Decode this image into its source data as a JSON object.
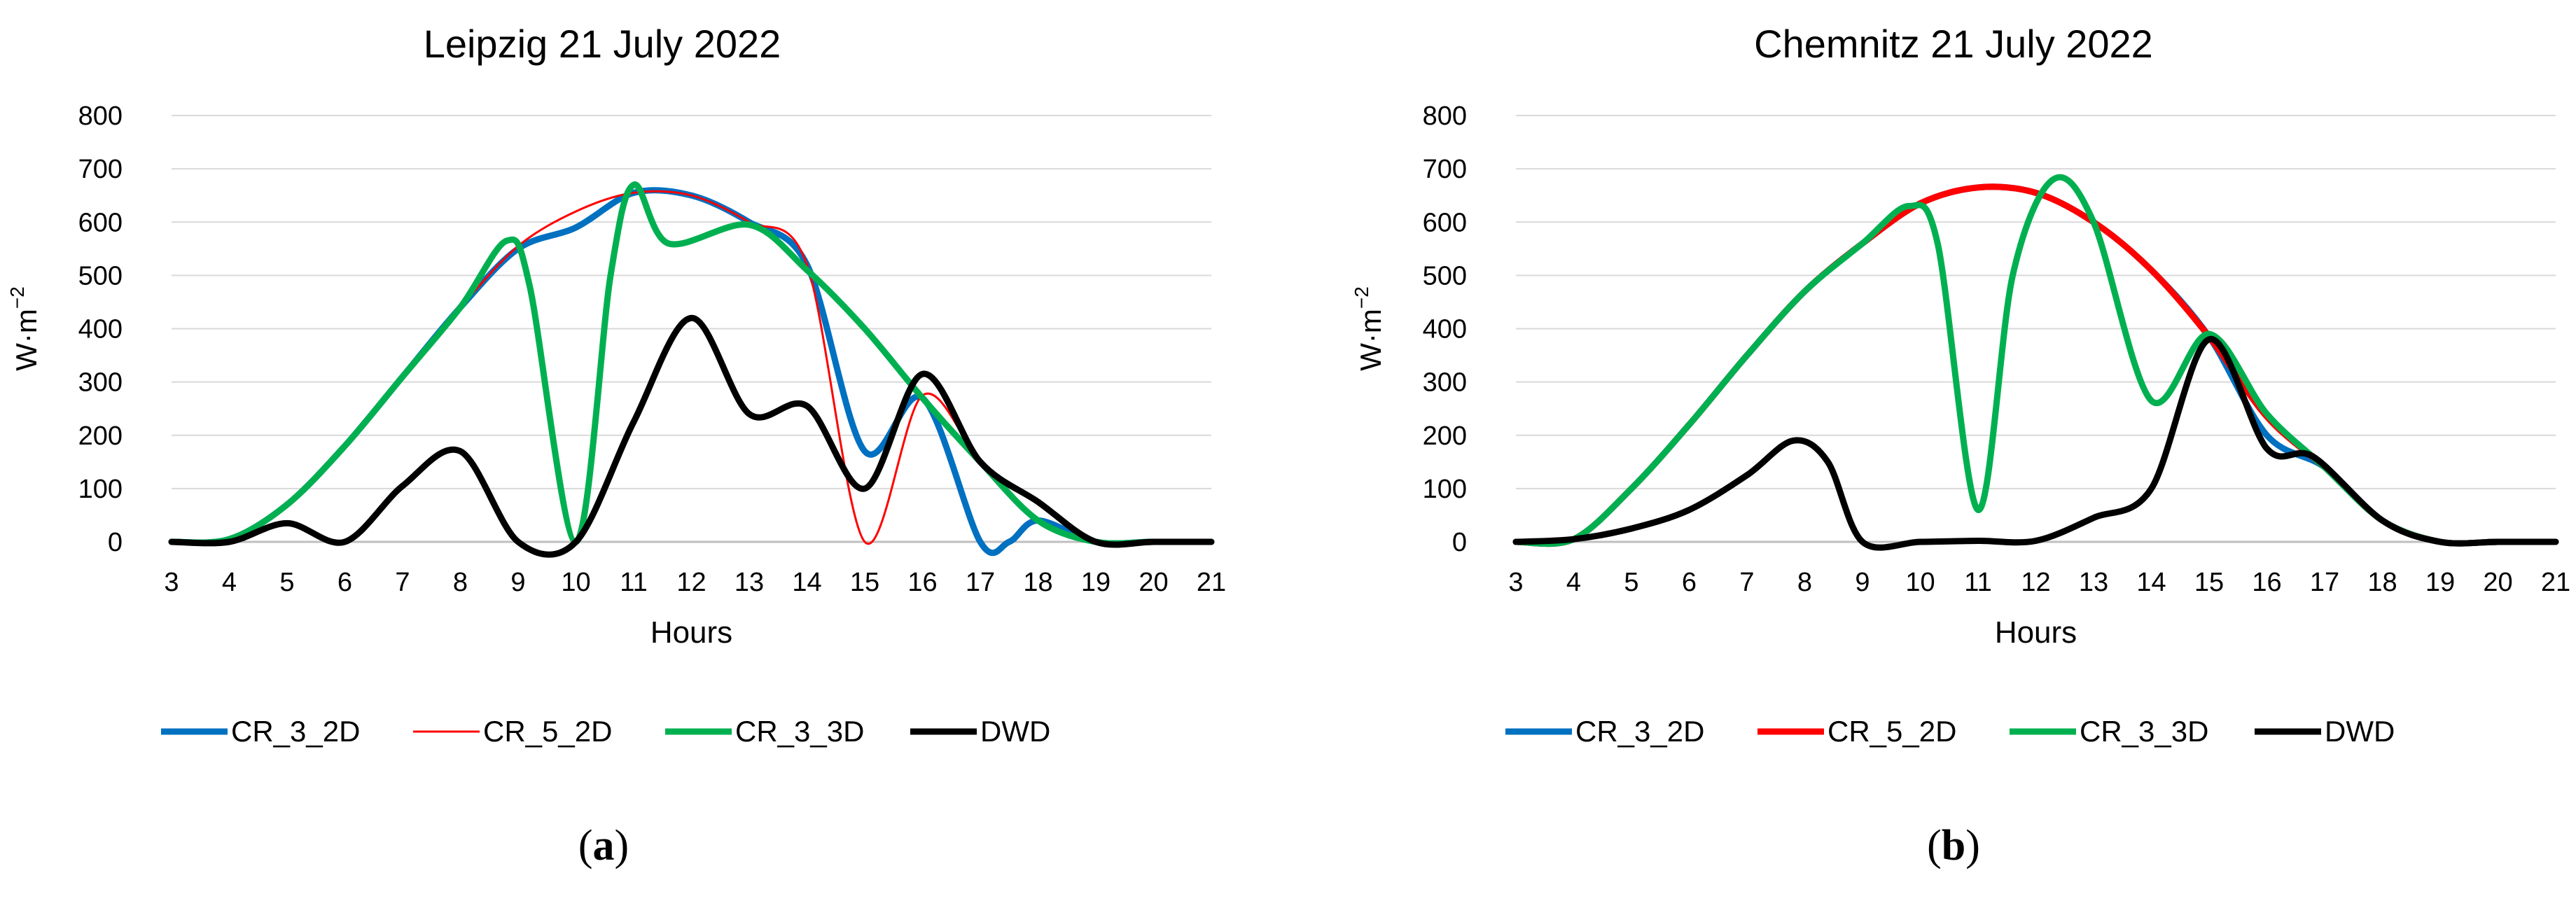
{
  "chart_data": [
    {
      "type": "line",
      "title": "Leipzig 21 July 2022",
      "xlabel": "Hours",
      "ylabel_base": "W·m",
      "ylabel_exp": "−2",
      "ylim": [
        0,
        800
      ],
      "yticks": [
        0,
        100,
        200,
        300,
        400,
        500,
        600,
        700,
        800
      ],
      "xlim": [
        3,
        21
      ],
      "xticks": [
        3,
        4,
        5,
        6,
        7,
        8,
        9,
        10,
        11,
        12,
        13,
        14,
        15,
        16,
        17,
        18,
        19,
        20,
        21
      ],
      "grid": true,
      "legend_position": "bottom",
      "caption_letter": "a",
      "series": [
        {
          "name": "CR_3_2D",
          "color": "#0070C0",
          "width": 9,
          "points": [
            [
              3,
              0
            ],
            [
              4,
              5
            ],
            [
              5,
              70
            ],
            [
              6,
              180
            ],
            [
              7,
              310
            ],
            [
              8,
              440
            ],
            [
              9,
              550
            ],
            [
              10,
              590
            ],
            [
              11,
              655
            ],
            [
              12,
              650
            ],
            [
              13,
              600
            ],
            [
              14,
              520
            ],
            [
              15,
              170
            ],
            [
              16,
              270
            ],
            [
              17,
              0
            ],
            [
              17.5,
              0
            ],
            [
              18,
              40
            ],
            [
              19,
              0
            ],
            [
              20,
              0
            ],
            [
              21,
              0
            ]
          ]
        },
        {
          "name": "CR_5_2D",
          "color": "#FF0000",
          "width": 3,
          "points": [
            [
              3,
              0
            ],
            [
              4,
              5
            ],
            [
              5,
              70
            ],
            [
              6,
              180
            ],
            [
              7,
              310
            ],
            [
              8,
              440
            ],
            [
              9,
              555
            ],
            [
              10,
              620
            ],
            [
              11,
              655
            ],
            [
              12,
              650
            ],
            [
              13,
              600
            ],
            [
              14,
              520
            ],
            [
              15,
              0
            ],
            [
              16,
              275
            ],
            [
              17,
              150
            ],
            [
              18,
              40
            ],
            [
              19,
              0
            ],
            [
              20,
              0
            ],
            [
              21,
              0
            ]
          ]
        },
        {
          "name": "CR_3_3D",
          "color": "#00B050",
          "width": 9,
          "points": [
            [
              3,
              0
            ],
            [
              4,
              5
            ],
            [
              5,
              70
            ],
            [
              6,
              180
            ],
            [
              7,
              310
            ],
            [
              8,
              440
            ],
            [
              8.8,
              565
            ],
            [
              9.2,
              480
            ],
            [
              10,
              0
            ],
            [
              10.6,
              500
            ],
            [
              11,
              670
            ],
            [
              11.6,
              560
            ],
            [
              13,
              595
            ],
            [
              14,
              510
            ],
            [
              15,
              400
            ],
            [
              16,
              270
            ],
            [
              17,
              150
            ],
            [
              18,
              40
            ],
            [
              19,
              0
            ],
            [
              20,
              0
            ],
            [
              21,
              0
            ]
          ]
        },
        {
          "name": "DWD",
          "color": "#000000",
          "width": 9,
          "points": [
            [
              3,
              0
            ],
            [
              4,
              0
            ],
            [
              5,
              35
            ],
            [
              6,
              0
            ],
            [
              7,
              105
            ],
            [
              8,
              170
            ],
            [
              9,
              0
            ],
            [
              10,
              0
            ],
            [
              11,
              225
            ],
            [
              12,
              420
            ],
            [
              13,
              240
            ],
            [
              14,
              255
            ],
            [
              15,
              100
            ],
            [
              16,
              315
            ],
            [
              17,
              150
            ],
            [
              18,
              75
            ],
            [
              19,
              0
            ],
            [
              20,
              0
            ],
            [
              21,
              0
            ]
          ]
        }
      ]
    },
    {
      "type": "line",
      "title": "Chemnitz 21 July 2022",
      "xlabel": "Hours",
      "ylabel_base": "W·m",
      "ylabel_exp": "−2",
      "ylim": [
        0,
        800
      ],
      "yticks": [
        0,
        100,
        200,
        300,
        400,
        500,
        600,
        700,
        800
      ],
      "xlim": [
        3,
        21
      ],
      "xticks": [
        3,
        4,
        5,
        6,
        7,
        8,
        9,
        10,
        11,
        12,
        13,
        14,
        15,
        16,
        17,
        18,
        19,
        20,
        21
      ],
      "grid": true,
      "legend_position": "bottom",
      "caption_letter": "b",
      "series": [
        {
          "name": "CR_3_2D",
          "color": "#0070C0",
          "width": 9,
          "points": [
            [
              3,
              0
            ],
            [
              4,
              5
            ],
            [
              5,
              100
            ],
            [
              6,
              220
            ],
            [
              7,
              350
            ],
            [
              8,
              470
            ],
            [
              9,
              560
            ],
            [
              10,
              635
            ],
            [
              11,
              665
            ],
            [
              12,
              655
            ],
            [
              13,
              600
            ],
            [
              14,
              510
            ],
            [
              15,
              385
            ],
            [
              16,
              200
            ],
            [
              17,
              140
            ],
            [
              18,
              40
            ],
            [
              19,
              0
            ],
            [
              20,
              0
            ],
            [
              21,
              0
            ]
          ]
        },
        {
          "name": "CR_5_2D",
          "color": "#FF0000",
          "width": 9,
          "points": [
            [
              3,
              0
            ],
            [
              4,
              5
            ],
            [
              5,
              100
            ],
            [
              6,
              220
            ],
            [
              7,
              350
            ],
            [
              8,
              470
            ],
            [
              9,
              560
            ],
            [
              10,
              635
            ],
            [
              11,
              665
            ],
            [
              12,
              655
            ],
            [
              13,
              600
            ],
            [
              14,
              510
            ],
            [
              15,
              385
            ],
            [
              16,
              235
            ],
            [
              17,
              140
            ],
            [
              18,
              40
            ],
            [
              19,
              0
            ],
            [
              20,
              0
            ],
            [
              21,
              0
            ]
          ]
        },
        {
          "name": "CR_3_3D",
          "color": "#00B050",
          "width": 9,
          "points": [
            [
              3,
              0
            ],
            [
              4,
              5
            ],
            [
              5,
              100
            ],
            [
              6,
              220
            ],
            [
              7,
              350
            ],
            [
              8,
              470
            ],
            [
              9,
              560
            ],
            [
              9.8,
              630
            ],
            [
              10.3,
              560
            ],
            [
              11,
              60
            ],
            [
              11.6,
              500
            ],
            [
              12.3,
              680
            ],
            [
              13,
              600
            ],
            [
              14,
              265
            ],
            [
              15,
              390
            ],
            [
              16,
              240
            ],
            [
              17,
              140
            ],
            [
              18,
              40
            ],
            [
              19,
              0
            ],
            [
              20,
              0
            ],
            [
              21,
              0
            ]
          ]
        },
        {
          "name": "DWD",
          "color": "#000000",
          "width": 9,
          "points": [
            [
              3,
              0
            ],
            [
              4,
              5
            ],
            [
              5,
              25
            ],
            [
              6,
              60
            ],
            [
              7,
              125
            ],
            [
              7.8,
              190
            ],
            [
              8.4,
              150
            ],
            [
              9,
              0
            ],
            [
              10,
              0
            ],
            [
              11,
              2
            ],
            [
              12,
              2
            ],
            [
              13,
              45
            ],
            [
              14,
              100
            ],
            [
              15,
              380
            ],
            [
              16,
              175
            ],
            [
              16.8,
              160
            ],
            [
              18,
              40
            ],
            [
              19,
              0
            ],
            [
              20,
              0
            ],
            [
              21,
              0
            ]
          ]
        }
      ]
    }
  ]
}
